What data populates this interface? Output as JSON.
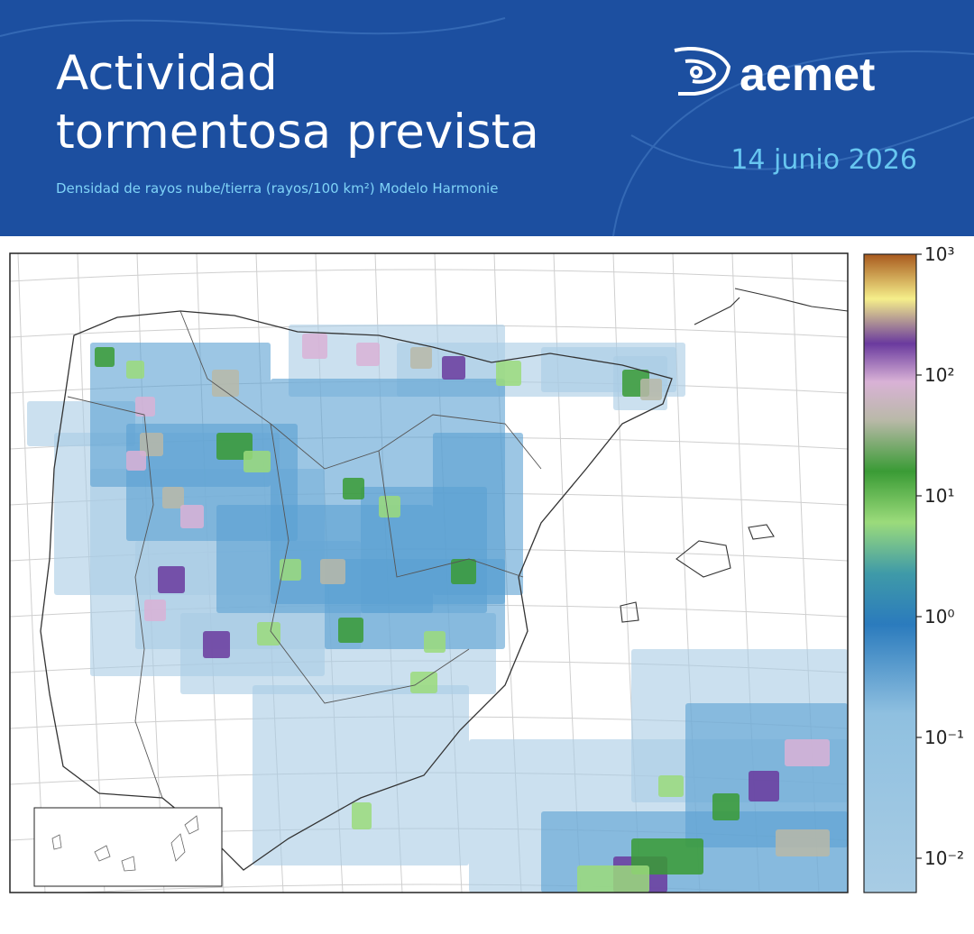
{
  "header": {
    "title_lines": [
      "Actividad",
      "tormentosa prevista"
    ],
    "subtitle": "Densidad de rayos nube/tierra (rayos/100 km²) Modelo Harmonie",
    "logo": "aemet",
    "date": "14 junio 2026"
  },
  "colorbar": {
    "scale": "log",
    "lim": [
      0.0052,
      1000
    ],
    "ticks": [
      {
        "value": 0.01,
        "label": "10⁻²"
      },
      {
        "value": 0.1,
        "label": "10⁻¹"
      },
      {
        "value": 1,
        "label": "10⁰"
      },
      {
        "value": 10,
        "label": "10¹"
      },
      {
        "value": 100,
        "label": "10²"
      },
      {
        "value": 1000,
        "label": "10³"
      }
    ]
  }
}
